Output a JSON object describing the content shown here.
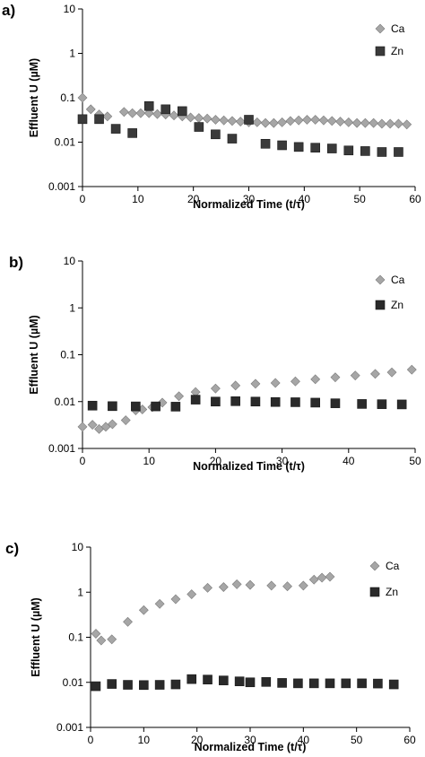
{
  "chart_data": [
    {
      "label": "a)",
      "type": "scatter",
      "xlabel": "Normalized Time (t/τ)",
      "ylabel": "Effluent U (µM)",
      "yscale": "log",
      "xlim": [
        0,
        60
      ],
      "ylim": [
        0.001,
        10
      ],
      "xticks": [
        "0",
        "10",
        "20",
        "30",
        "40",
        "50",
        "60"
      ],
      "yticks": [
        "0.001",
        "0.01",
        "0.1",
        "1",
        "10"
      ],
      "grid": false,
      "legend": "top-right",
      "series": [
        {
          "name": "Ca",
          "marker": "diamond",
          "color": "#a6a6a6",
          "points": [
            [
              0,
              0.1
            ],
            [
              1.5,
              0.055
            ],
            [
              3,
              0.042
            ],
            [
              4.5,
              0.038
            ],
            [
              7.5,
              0.048
            ],
            [
              9,
              0.045
            ],
            [
              10.5,
              0.045
            ],
            [
              12,
              0.045
            ],
            [
              13.5,
              0.043
            ],
            [
              15,
              0.042
            ],
            [
              16.5,
              0.04
            ],
            [
              18,
              0.038
            ],
            [
              19.5,
              0.036
            ],
            [
              21,
              0.035
            ],
            [
              22.5,
              0.034
            ],
            [
              24,
              0.032
            ],
            [
              25.5,
              0.031
            ],
            [
              27,
              0.03
            ],
            [
              28.5,
              0.029
            ],
            [
              30,
              0.028
            ],
            [
              31.5,
              0.028
            ],
            [
              33,
              0.027
            ],
            [
              34.5,
              0.027
            ],
            [
              36,
              0.028
            ],
            [
              37.5,
              0.03
            ],
            [
              39,
              0.031
            ],
            [
              40.5,
              0.032
            ],
            [
              42,
              0.032
            ],
            [
              43.5,
              0.031
            ],
            [
              45,
              0.03
            ],
            [
              46.5,
              0.029
            ],
            [
              48,
              0.028
            ],
            [
              49.5,
              0.027
            ],
            [
              51,
              0.027
            ],
            [
              52.5,
              0.027
            ],
            [
              54,
              0.026
            ],
            [
              55.5,
              0.026
            ],
            [
              57,
              0.026
            ],
            [
              58.5,
              0.025
            ]
          ]
        },
        {
          "name": "Zn",
          "marker": "square",
          "color": "#3a3a3a",
          "points": [
            [
              0,
              0.033
            ],
            [
              3,
              0.033
            ],
            [
              6,
              0.02
            ],
            [
              9,
              0.016
            ],
            [
              12,
              0.065
            ],
            [
              15,
              0.055
            ],
            [
              18,
              0.05
            ],
            [
              21,
              0.022
            ],
            [
              24,
              0.015
            ],
            [
              27,
              0.012
            ],
            [
              30,
              0.032
            ],
            [
              33,
              0.0092
            ],
            [
              36,
              0.0085
            ],
            [
              39,
              0.0078
            ],
            [
              42,
              0.0075
            ],
            [
              45,
              0.0072
            ],
            [
              48,
              0.0065
            ],
            [
              51,
              0.0063
            ],
            [
              54,
              0.006
            ],
            [
              57,
              0.006
            ]
          ]
        }
      ]
    },
    {
      "label": "b)",
      "type": "scatter",
      "xlabel": "Normalized Time (t/τ)",
      "ylabel": "Effluent U (µM)",
      "yscale": "log",
      "xlim": [
        0,
        50
      ],
      "ylim": [
        0.001,
        10
      ],
      "xticks": [
        "0",
        "10",
        "20",
        "30",
        "40",
        "50"
      ],
      "yticks": [
        "0.001",
        "0.01",
        "0.1",
        "1",
        "10"
      ],
      "grid": false,
      "legend": "top-right",
      "series": [
        {
          "name": "Ca",
          "marker": "diamond",
          "color": "#a6a6a6",
          "points": [
            [
              0,
              0.0029
            ],
            [
              1.5,
              0.0032
            ],
            [
              2.5,
              0.0026
            ],
            [
              3.5,
              0.0029
            ],
            [
              4.5,
              0.0033
            ],
            [
              6.5,
              0.004
            ],
            [
              8,
              0.0065
            ],
            [
              9,
              0.0068
            ],
            [
              10.5,
              0.0076
            ],
            [
              12,
              0.0095
            ],
            [
              14.5,
              0.013
            ],
            [
              17,
              0.016
            ],
            [
              20,
              0.019
            ],
            [
              23,
              0.022
            ],
            [
              26,
              0.024
            ],
            [
              29,
              0.025
            ],
            [
              32,
              0.027
            ],
            [
              35,
              0.03
            ],
            [
              38,
              0.033
            ],
            [
              41,
              0.036
            ],
            [
              44,
              0.039
            ],
            [
              46.5,
              0.042
            ],
            [
              49.5,
              0.048
            ]
          ]
        },
        {
          "name": "Zn",
          "marker": "square",
          "color": "#2a2a2a",
          "points": [
            [
              1.5,
              0.0082
            ],
            [
              4.5,
              0.008
            ],
            [
              8,
              0.0079
            ],
            [
              11,
              0.0079
            ],
            [
              14,
              0.0078
            ],
            [
              17,
              0.011
            ],
            [
              20,
              0.01
            ],
            [
              23,
              0.0102
            ],
            [
              26,
              0.01
            ],
            [
              29,
              0.0098
            ],
            [
              32,
              0.0097
            ],
            [
              35,
              0.0095
            ],
            [
              38,
              0.0092
            ],
            [
              42,
              0.0089
            ],
            [
              45,
              0.0088
            ],
            [
              48,
              0.0087
            ]
          ]
        }
      ]
    },
    {
      "label": "c)",
      "type": "scatter",
      "xlabel": "Normalized Time (t/τ)",
      "ylabel": "Effluent U (µM)",
      "yscale": "log",
      "xlim": [
        0,
        60
      ],
      "ylim": [
        0.001,
        10
      ],
      "xticks": [
        "0",
        "10",
        "20",
        "30",
        "40",
        "50",
        "60"
      ],
      "yticks": [
        "0.001",
        "0.01",
        "0.1",
        "1",
        "10"
      ],
      "grid": false,
      "legend": "top-right",
      "series": [
        {
          "name": "Ca",
          "marker": "diamond",
          "color": "#a6a6a6",
          "points": [
            [
              1,
              0.12
            ],
            [
              2,
              0.085
            ],
            [
              4,
              0.09
            ],
            [
              7,
              0.22
            ],
            [
              10,
              0.4
            ],
            [
              13,
              0.55
            ],
            [
              16,
              0.7
            ],
            [
              19,
              0.9
            ],
            [
              22,
              1.25
            ],
            [
              25,
              1.3
            ],
            [
              27.5,
              1.5
            ],
            [
              30,
              1.45
            ],
            [
              34,
              1.4
            ],
            [
              37,
              1.35
            ],
            [
              40,
              1.4
            ],
            [
              42,
              1.9
            ],
            [
              43.5,
              2.1
            ],
            [
              45,
              2.2
            ]
          ]
        },
        {
          "name": "Zn",
          "marker": "square",
          "color": "#2a2a2a",
          "points": [
            [
              1,
              0.0082
            ],
            [
              4,
              0.0092
            ],
            [
              7,
              0.0088
            ],
            [
              10,
              0.0087
            ],
            [
              13,
              0.0088
            ],
            [
              16,
              0.009
            ],
            [
              19,
              0.0118
            ],
            [
              22,
              0.0115
            ],
            [
              25,
              0.011
            ],
            [
              28,
              0.0105
            ],
            [
              30,
              0.01
            ],
            [
              33,
              0.0102
            ],
            [
              36,
              0.0097
            ],
            [
              39,
              0.0095
            ],
            [
              42,
              0.0095
            ],
            [
              45,
              0.0095
            ],
            [
              48,
              0.0095
            ],
            [
              51,
              0.0095
            ],
            [
              54,
              0.0094
            ],
            [
              57,
              0.009
            ]
          ]
        }
      ]
    }
  ]
}
